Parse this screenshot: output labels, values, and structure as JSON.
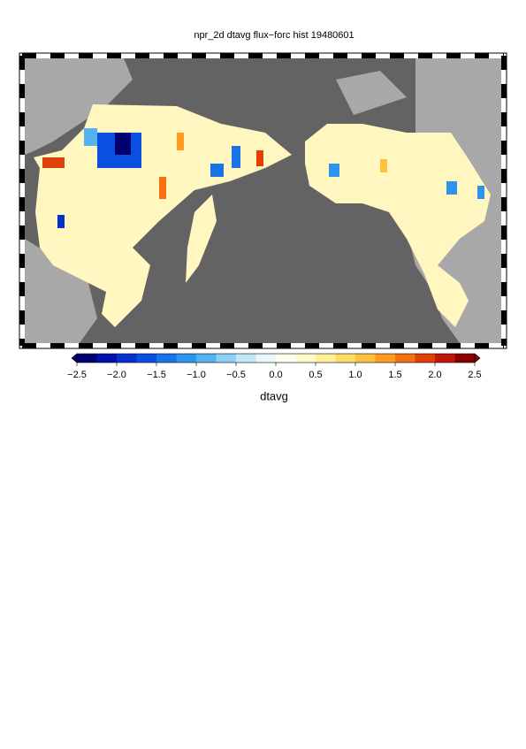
{
  "title": "npr_2d dtavg flux−forc hist 19480601",
  "colorbar": {
    "label": "dtavg",
    "lim": [
      -2.5,
      2.5
    ],
    "ticks": [
      {
        "value": -2.5,
        "label": "−2.5"
      },
      {
        "value": -2.0,
        "label": "−2.0"
      },
      {
        "value": -1.5,
        "label": "−1.5"
      },
      {
        "value": -1.0,
        "label": "−1.0"
      },
      {
        "value": -0.5,
        "label": "−0.5"
      },
      {
        "value": 0,
        "label": "0.0"
      },
      0.5,
      {
        "value": 1.0,
        "label": "1.0"
      },
      1.5,
      {
        "value": 2.0,
        "label": "2.0"
      },
      2.5
    ],
    "colors": [
      "#000070",
      "#0010a8",
      "#0530d0",
      "#0a50e0",
      "#1873e8",
      "#2c94ee",
      "#55b2f2",
      "#8fd0f5",
      "#c2e8f7",
      "#eaf7fb",
      "#ffffee",
      "#fffbc8",
      "#fff09a",
      "#ffdc6a",
      "#ffc040",
      "#ff9a20",
      "#f47010",
      "#e04008",
      "#c01808",
      "#880000"
    ]
  }
}
